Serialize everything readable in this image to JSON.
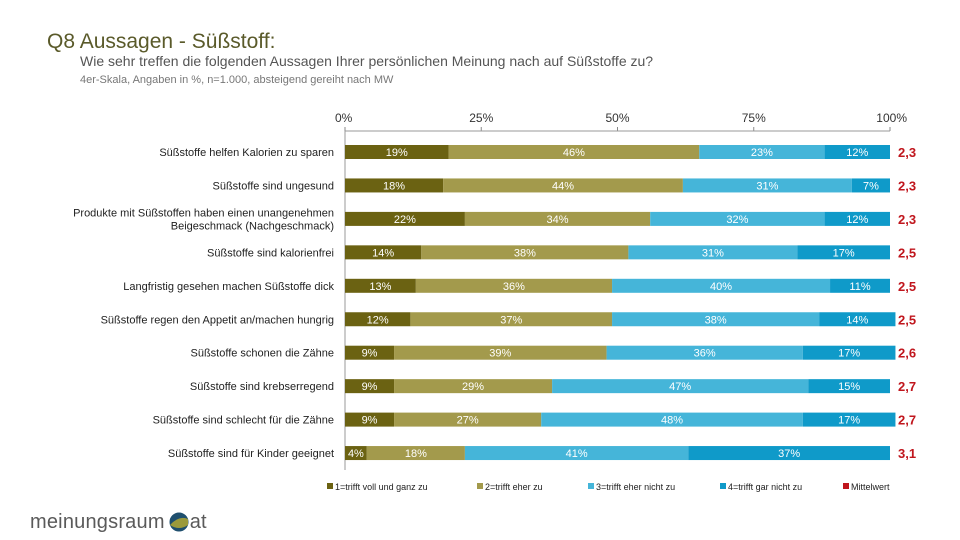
{
  "header": {
    "title": "Q8 Aussagen - Süßstoff:",
    "subtitle": "Wie sehr treffen die folgenden Aussagen Ihrer persönlichen Meinung nach auf Süßstoffe zu?",
    "note": "4er-Skala, Angaben in %, n=1.000, absteigend gereiht nach MW"
  },
  "logo": {
    "left_text": "meinungsraum",
    "right_text": "at"
  },
  "chart_data": {
    "type": "bar",
    "orientation": "horizontal-stacked-100",
    "xlim": [
      0,
      100
    ],
    "ticks": [
      "0%",
      "25%",
      "50%",
      "75%",
      "100%"
    ],
    "tick_values": [
      0,
      25,
      50,
      75,
      100
    ],
    "categories": [
      [
        "Süßstoffe helfen Kalorien zu sparen"
      ],
      [
        "Süßstoffe sind ungesund"
      ],
      [
        "Produkte mit Süßstoffen haben einen unangenehmen",
        "Beigeschmack (Nachgeschmack)"
      ],
      [
        "Süßstoffe sind kalorienfrei"
      ],
      [
        "Langfristig gesehen machen Süßstoffe dick"
      ],
      [
        "Süßstoffe regen den Appetit an/machen hungrig"
      ],
      [
        "Süßstoffe schonen die Zähne"
      ],
      [
        "Süßstoffe sind krebserregend"
      ],
      [
        "Süßstoffe sind schlecht für die Zähne"
      ],
      [
        "Süßstoffe sind für Kinder geeignet"
      ]
    ],
    "series": [
      {
        "name": "1=trifft voll und ganz zu",
        "color": "#6b6212",
        "text_color": "#ffffff",
        "values": [
          19,
          18,
          22,
          14,
          13,
          12,
          9,
          9,
          9,
          4
        ]
      },
      {
        "name": "2=trifft eher zu",
        "color": "#a39a4c",
        "text_color": "#ffffff",
        "values": [
          46,
          44,
          34,
          38,
          36,
          37,
          39,
          29,
          27,
          18
        ]
      },
      {
        "name": "3=trifft eher nicht zu",
        "color": "#45b5d9",
        "text_color": "#ffffff",
        "values": [
          23,
          31,
          32,
          31,
          40,
          38,
          36,
          47,
          48,
          41
        ]
      },
      {
        "name": "4=trifft gar nicht zu",
        "color": "#0f9ac9",
        "text_color": "#ffffff",
        "values": [
          12,
          7,
          12,
          17,
          11,
          14,
          17,
          15,
          17,
          37
        ]
      }
    ],
    "mean": {
      "name": "Mittelwert",
      "color": "#c0161d",
      "values": [
        "2,3",
        "2,3",
        "2,3",
        "2,5",
        "2,5",
        "2,5",
        "2,6",
        "2,7",
        "2,7",
        "3,1"
      ]
    }
  }
}
